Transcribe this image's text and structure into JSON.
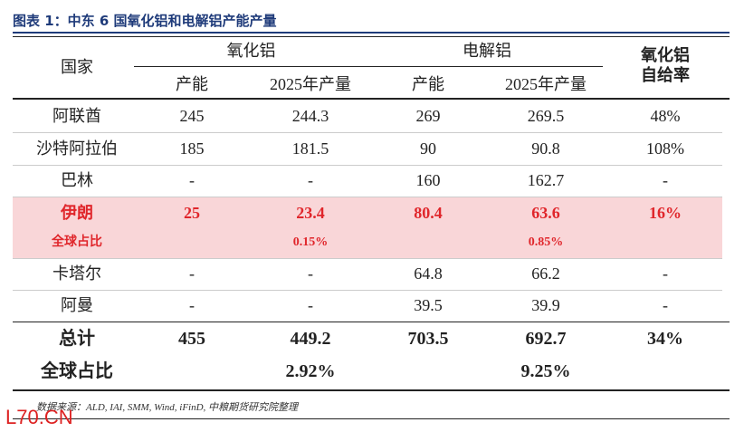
{
  "header": {
    "title": "图表 1：中东 6 国氧化铝和电解铝产能产量"
  },
  "table": {
    "columns": {
      "country": "国家",
      "alumina": "氧化铝",
      "aluminum": "电解铝",
      "ratio": "氧化铝自给率",
      "sub": [
        "产能",
        "2025年产量",
        "产能",
        "2025年产量"
      ]
    },
    "rows": [
      [
        "阿联酋",
        "245",
        "244.3",
        "269",
        "269.5",
        "48%"
      ],
      [
        "沙特阿拉伯",
        "185",
        "181.5",
        "90",
        "90.8",
        "108%"
      ],
      [
        "巴林",
        "-",
        "-",
        "160",
        "162.7",
        "-"
      ],
      [
        "伊朗",
        "25",
        "23.4",
        "80.4",
        "63.6",
        "16%"
      ],
      [
        "卡塔尔",
        "-",
        "-",
        "64.8",
        "66.2",
        "-"
      ],
      [
        "阿曼",
        "-",
        "-",
        "39.5",
        "39.9",
        "-"
      ]
    ],
    "iran_share": {
      "label": "全球占比",
      "alumina_output": "0.15%",
      "aluminum_output": "0.85%"
    },
    "total": [
      "总计",
      "455",
      "449.2",
      "703.5",
      "692.7",
      "34%"
    ],
    "total_share": {
      "label": "全球占比",
      "alumina_output": "2.92%",
      "aluminum_output": "9.25%"
    }
  },
  "footer": {
    "source": "数据来源：ALD, IAI, SMM, Wind, iFinD, 中粮期货研究院整理",
    "watermark": "L70.CN"
  }
}
